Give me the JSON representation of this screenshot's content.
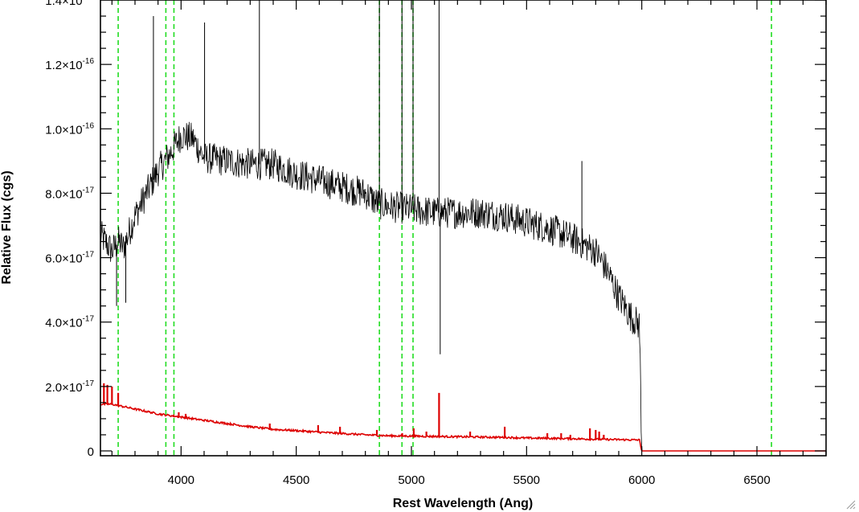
{
  "chart_data": {
    "type": "line",
    "xlabel": "Rest Wavelength (Ang)",
    "ylabel": "Relative Flux (cgs)",
    "xlim": [
      3650,
      6800
    ],
    "ylim": [
      -1.5e-18,
      1.4e-16
    ],
    "x_ticks": [
      {
        "value": 4000,
        "label": "4000"
      },
      {
        "value": 4500,
        "label": "4500"
      },
      {
        "value": 5000,
        "label": "5000"
      },
      {
        "value": 5500,
        "label": "5500"
      },
      {
        "value": 6000,
        "label": "6000"
      },
      {
        "value": 6500,
        "label": "6500"
      }
    ],
    "y_ticks": [
      {
        "value": 0,
        "mant": "0",
        "exp": ""
      },
      {
        "value": 2e-17,
        "mant": "2.0×10",
        "exp": "-17"
      },
      {
        "value": 4e-17,
        "mant": "4.0×10",
        "exp": "-17"
      },
      {
        "value": 6e-17,
        "mant": "6.0×10",
        "exp": "-17"
      },
      {
        "value": 8e-17,
        "mant": "8.0×10",
        "exp": "-17"
      },
      {
        "value": 1e-16,
        "mant": "1.0×10",
        "exp": "-16"
      },
      {
        "value": 1.2e-16,
        "mant": "1.2×10",
        "exp": "-16"
      },
      {
        "value": 1.4e-16,
        "mant": "1.4×10",
        "exp": "-16"
      }
    ],
    "x_minor_step": 100,
    "y_minor_step": 5e-18,
    "reference_lines": {
      "color": "#22dd22",
      "style": "dashed",
      "x": [
        3727,
        3934,
        3969,
        4861,
        4959,
        5007,
        6563
      ]
    },
    "series": [
      {
        "color": "#000000",
        "points": [
          [
            3650,
            6.7e-17
          ],
          [
            3700,
            6.2e-17
          ],
          [
            3730,
            6.5e-17
          ],
          [
            3750,
            6.3e-17
          ],
          [
            3800,
            7.3e-17
          ],
          [
            3850,
            8e-17
          ],
          [
            3900,
            8.7e-17
          ],
          [
            3950,
            9.2e-17
          ],
          [
            4000,
            9.8e-17
          ],
          [
            4050,
            9.7e-17
          ],
          [
            4100,
            9.1e-17
          ],
          [
            4200,
            9e-17
          ],
          [
            4300,
            8.9e-17
          ],
          [
            4400,
            8.9e-17
          ],
          [
            4500,
            8.6e-17
          ],
          [
            4600,
            8.4e-17
          ],
          [
            4700,
            8.2e-17
          ],
          [
            4800,
            8e-17
          ],
          [
            4850,
            7.7e-17
          ],
          [
            4900,
            7.6e-17
          ],
          [
            5000,
            7.5e-17
          ],
          [
            5100,
            7.4e-17
          ],
          [
            5200,
            7.4e-17
          ],
          [
            5300,
            7.4e-17
          ],
          [
            5400,
            7.3e-17
          ],
          [
            5500,
            7.1e-17
          ],
          [
            5600,
            6.9e-17
          ],
          [
            5700,
            6.6e-17
          ],
          [
            5800,
            6.2e-17
          ],
          [
            5850,
            5.6e-17
          ],
          [
            5900,
            4.8e-17
          ],
          [
            5950,
            4.2e-17
          ],
          [
            5990,
            3.9e-17
          ],
          [
            6000,
            0
          ],
          [
            6800,
            0
          ]
        ],
        "spikes": [
          [
            3880,
            1.35e-16
          ],
          [
            4102,
            1.33e-16
          ],
          [
            4340,
            1.45e-16
          ],
          [
            4861,
            1.45e-16
          ],
          [
            4959,
            1.45e-16
          ],
          [
            5007,
            1.45e-16
          ],
          [
            5120,
            1.4e-16
          ],
          [
            5740,
            9e-17
          ],
          [
            3720,
            4.5e-17
          ],
          [
            3760,
            4.6e-17
          ],
          [
            5125,
            3e-17
          ]
        ]
      },
      {
        "color": "#dd0000",
        "points": [
          [
            3650,
            1.45e-17
          ],
          [
            3700,
            1.45e-17
          ],
          [
            3800,
            1.3e-17
          ],
          [
            3900,
            1.15e-17
          ],
          [
            4000,
            1.05e-17
          ],
          [
            4100,
            9.5e-18
          ],
          [
            4200,
            8.5e-18
          ],
          [
            4300,
            7.5e-18
          ],
          [
            4400,
            6.7e-18
          ],
          [
            4500,
            6.3e-18
          ],
          [
            4600,
            5.8e-18
          ],
          [
            4700,
            5.4e-18
          ],
          [
            4800,
            5e-18
          ],
          [
            4900,
            4.7e-18
          ],
          [
            5000,
            4.6e-18
          ],
          [
            5100,
            4.5e-18
          ],
          [
            5200,
            4.4e-18
          ],
          [
            5300,
            4.3e-18
          ],
          [
            5400,
            4.2e-18
          ],
          [
            5500,
            4e-18
          ],
          [
            5600,
            3.9e-18
          ],
          [
            5700,
            3.8e-18
          ],
          [
            5800,
            3.6e-18
          ],
          [
            5900,
            3.5e-18
          ],
          [
            5990,
            3.4e-18
          ],
          [
            6000,
            0
          ],
          [
            6800,
            0
          ]
        ],
        "spikes": [
          [
            3665,
            2.1e-17
          ],
          [
            3680,
            2.05e-17
          ],
          [
            3700,
            2e-17
          ],
          [
            3727,
            1.8e-17
          ],
          [
            3990,
            1.2e-17
          ],
          [
            4020,
            1.15e-17
          ],
          [
            4385,
            8.5e-18
          ],
          [
            4595,
            8e-18
          ],
          [
            4690,
            7.5e-18
          ],
          [
            4850,
            6.5e-18
          ],
          [
            4960,
            5.5e-18
          ],
          [
            5010,
            7e-18
          ],
          [
            5065,
            6e-18
          ],
          [
            5120,
            1.8e-17
          ],
          [
            5255,
            6e-18
          ],
          [
            5405,
            7.5e-18
          ],
          [
            5590,
            5.5e-18
          ],
          [
            5650,
            5.5e-18
          ],
          [
            5690,
            5e-18
          ],
          [
            5775,
            7e-18
          ],
          [
            5800,
            6.5e-18
          ],
          [
            5815,
            6e-18
          ],
          [
            5835,
            5e-18
          ]
        ]
      }
    ]
  }
}
